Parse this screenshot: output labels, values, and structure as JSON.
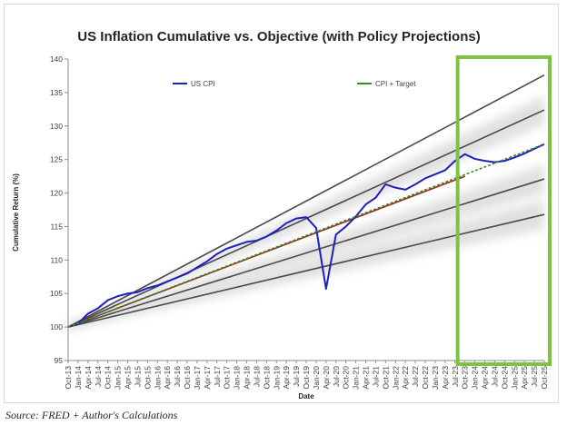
{
  "chart_data": {
    "type": "line",
    "title": "US Inflation Cumulative  vs. Objective (with Policy Projections)",
    "xlabel": "Date",
    "ylabel": "Cumulative Return (%)",
    "ylim": [
      95,
      140
    ],
    "yticks": [
      95,
      100,
      105,
      110,
      115,
      120,
      125,
      130,
      135,
      140
    ],
    "x_ticks": [
      "Oct-13",
      "Jan-14",
      "Apr-14",
      "Jul-14",
      "Oct-14",
      "Jan-15",
      "Apr-15",
      "Jul-15",
      "Oct-15",
      "Jan-16",
      "Apr-16",
      "Jul-16",
      "Oct-16",
      "Jan-17",
      "Apr-17",
      "Jul-17",
      "Oct-17",
      "Jan-18",
      "Apr-18",
      "Jul-18",
      "Oct-18",
      "Jan-19",
      "Apr-19",
      "Jul-19",
      "Oct-19",
      "Jan-20",
      "Apr-20",
      "Jul-20",
      "Oct-20",
      "Jan-21",
      "Apr-21",
      "Jul-21",
      "Oct-21",
      "Jan-22",
      "Apr-22",
      "Jul-22",
      "Oct-22",
      "Jan-23",
      "Apr-23",
      "Jul-23",
      "Oct-23",
      "Jan-24",
      "Apr-24",
      "Jul-24",
      "Oct-24",
      "Jan-25",
      "Apr-25",
      "Jul-25",
      "Oct-25"
    ],
    "grid": false,
    "legend_placement": "top",
    "legend": [
      "US CPI",
      "CPI + Target"
    ],
    "series": [
      {
        "name": "US CPI",
        "color": "#1f1fbf",
        "x": [
          "Oct-13",
          "Jan-14",
          "Apr-14",
          "Jul-14",
          "Oct-14",
          "Jan-15",
          "Apr-15",
          "Jul-15",
          "Oct-15",
          "Jan-16",
          "Apr-16",
          "Jul-16",
          "Oct-16",
          "Jan-17",
          "Apr-17",
          "Jul-17",
          "Oct-17",
          "Jan-18",
          "Apr-18",
          "Jul-18",
          "Oct-18",
          "Jan-19",
          "Apr-19",
          "Jul-19",
          "Oct-19",
          "Jan-20",
          "Apr-20",
          "Jul-20",
          "Oct-20",
          "Jan-21",
          "Apr-21",
          "Jul-21",
          "Oct-21",
          "Jan-22",
          "Apr-22",
          "Jul-22",
          "Oct-22",
          "Jan-23",
          "Apr-23",
          "Jul-23",
          "Oct-23",
          "Jan-24",
          "Apr-24",
          "Jul-24",
          "Oct-24",
          "Jan-25",
          "Apr-25",
          "Jul-25",
          "Oct-25"
        ],
        "values": [
          100,
          100.5,
          102,
          102.8,
          104,
          104.6,
          105,
          105.2,
          105.8,
          106.2,
          106.8,
          107.4,
          108,
          108.9,
          109.8,
          110.9,
          111.7,
          112.2,
          112.7,
          112.9,
          113.5,
          114.4,
          115.5,
          116.2,
          116.4,
          114.8,
          105.7,
          113.8,
          115,
          116.5,
          118.3,
          119.3,
          121.3,
          120.8,
          120.5,
          121.3,
          122.2,
          122.8,
          123.4,
          124.8,
          125.8,
          125.1,
          124.8,
          124.6,
          124.8,
          125.3,
          125.9,
          126.6,
          127.3
        ]
      },
      {
        "name": "CPI + Target",
        "color": "#3a8a2a",
        "x": [
          "Oct-13",
          "Oct-25"
        ],
        "values": [
          100,
          127.3
        ]
      }
    ],
    "reference_lines": [
      {
        "color": "#a0281a",
        "x": [
          "Oct-13",
          "Oct-23"
        ],
        "values": [
          100,
          122.5
        ]
      },
      {
        "color": "#4a4a4a",
        "x": [
          "Oct-13",
          "Oct-25"
        ],
        "values": [
          100,
          137.6
        ]
      },
      {
        "color": "#4a4a4a",
        "x": [
          "Oct-13",
          "Oct-25"
        ],
        "values": [
          100,
          132.4
        ]
      },
      {
        "color": "#4a4a4a",
        "x": [
          "Oct-13",
          "Oct-25"
        ],
        "values": [
          100,
          122.1
        ]
      },
      {
        "color": "#4a4a4a",
        "x": [
          "Oct-13",
          "Oct-25"
        ],
        "values": [
          100,
          116.8
        ]
      }
    ],
    "projection_highlight": {
      "from": "Oct-23",
      "to": "Oct-25",
      "color": "#7dc242"
    }
  },
  "source_note": "Source: FRED + Author's Calculations"
}
